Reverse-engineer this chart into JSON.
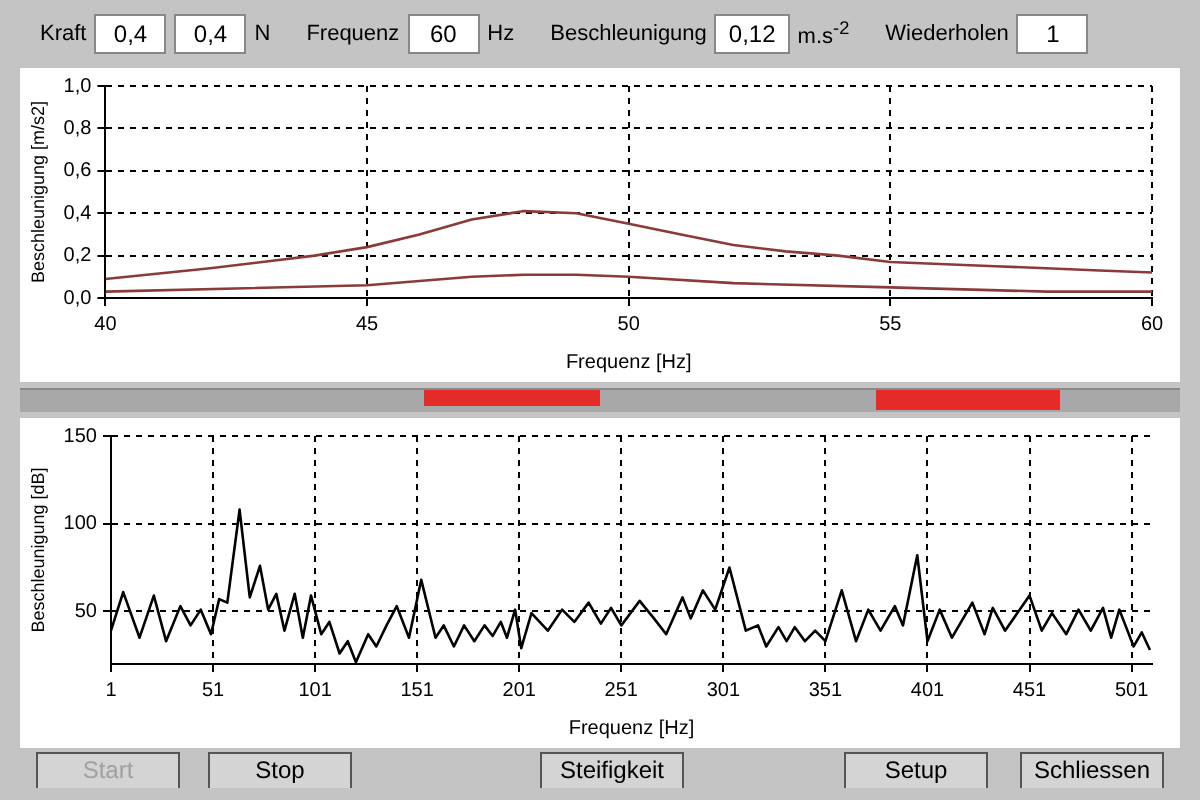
{
  "chart_data": [
    {
      "type": "other",
      "annotations": [
        "Kraft",
        "0,4",
        "0,4",
        "N",
        "Frequenz",
        "60",
        "Hz",
        "Beschleunigung",
        "0,12",
        "m.s$^{-2}$",
        "Wiederholen",
        "1"
      ]
    },
    {
      "type": "line",
      "xlabel": "Frequenz [Hz]",
      "ylabel": "Beschleunigung [m/s2]",
      "xlim": [
        40,
        60
      ],
      "xticks": [
        40,
        45,
        50,
        55,
        60
      ],
      "ylim": [
        0,
        1
      ],
      "yticks": [
        {
          "value": 0,
          "label": "0,0"
        },
        {
          "value": 0.2,
          "label": "0,2"
        },
        {
          "value": 0.4,
          "label": "0,4"
        },
        {
          "value": 0.6,
          "label": "0,6"
        },
        {
          "value": 0.8,
          "label": "0,8"
        },
        {
          "value": 1,
          "label": "1,0"
        }
      ],
      "grid": true,
      "legend": false,
      "line_style": "solid",
      "marker": "none",
      "series": [
        {
          "color": "#8b3a3a",
          "x": [
            40,
            42,
            44,
            45,
            46,
            47,
            48,
            49,
            50,
            51,
            52,
            53,
            54,
            55,
            57,
            59,
            60
          ],
          "values": [
            0.09,
            0.14,
            0.2,
            0.24,
            0.3,
            0.37,
            0.41,
            0.4,
            0.35,
            0.3,
            0.25,
            0.22,
            0.2,
            0.17,
            0.15,
            0.13,
            0.12
          ]
        },
        {
          "color": "#8b3a3a",
          "x": [
            40,
            45,
            47,
            48,
            49,
            50,
            52,
            55,
            58,
            60
          ],
          "values": [
            0.03,
            0.06,
            0.1,
            0.11,
            0.11,
            0.1,
            0.07,
            0.05,
            0.03,
            0.03
          ]
        }
      ]
    },
    {
      "type": "line",
      "xlabel": "Frequenz [Hz]",
      "ylabel": "Beschleunigung [dB]",
      "xlim": [
        1,
        511
      ],
      "xticks": [
        1,
        51,
        101,
        151,
        201,
        251,
        301,
        351,
        401,
        451,
        501
      ],
      "ylim": [
        20,
        150
      ],
      "yticks": [
        50,
        100,
        150
      ],
      "grid": true,
      "legend": false,
      "line_style": "solid",
      "marker": "none",
      "series": [
        {
          "color": "#000000",
          "x": [
            1,
            7,
            15,
            22,
            28,
            35,
            40,
            45,
            50,
            54,
            58,
            64,
            69,
            74,
            78,
            82,
            86,
            91,
            95,
            99,
            104,
            108,
            113,
            117,
            121,
            127,
            131,
            136,
            141,
            147,
            153,
            160,
            164,
            169,
            174,
            179,
            184,
            188,
            192,
            195,
            199,
            202,
            207,
            215,
            222,
            228,
            235,
            241,
            246,
            251,
            260,
            267,
            273,
            281,
            285,
            291,
            297,
            304,
            312,
            318,
            322,
            328,
            332,
            336,
            341,
            346,
            351,
            359,
            366,
            372,
            378,
            385,
            389,
            396,
            401,
            407,
            413,
            423,
            429,
            433,
            439,
            451,
            457,
            462,
            469,
            475,
            481,
            487,
            491,
            495,
            502,
            506,
            510
          ],
          "values": [
            39,
            61,
            35,
            59,
            33,
            53,
            42,
            51,
            37,
            57,
            55,
            108,
            58,
            76,
            51,
            60,
            39,
            60,
            35,
            59,
            37,
            44,
            26,
            33,
            21,
            37,
            30,
            42,
            53,
            35,
            68,
            35,
            42,
            30,
            42,
            33,
            42,
            36,
            44,
            35,
            51,
            29,
            49,
            39,
            51,
            44,
            55,
            43,
            52,
            42,
            56,
            46,
            37,
            58,
            46,
            62,
            51,
            75,
            39,
            42,
            30,
            41,
            33,
            41,
            33,
            39,
            33,
            62,
            33,
            51,
            39,
            53,
            42,
            82,
            33,
            51,
            35,
            55,
            37,
            52,
            39,
            59,
            39,
            49,
            37,
            51,
            39,
            52,
            35,
            51,
            30,
            38,
            28
          ]
        }
      ]
    },
    {
      "type": "other",
      "annotations": [
        "Start",
        "Stop",
        "Steifigkeit",
        "Setup",
        "Schliessen"
      ]
    }
  ]
}
